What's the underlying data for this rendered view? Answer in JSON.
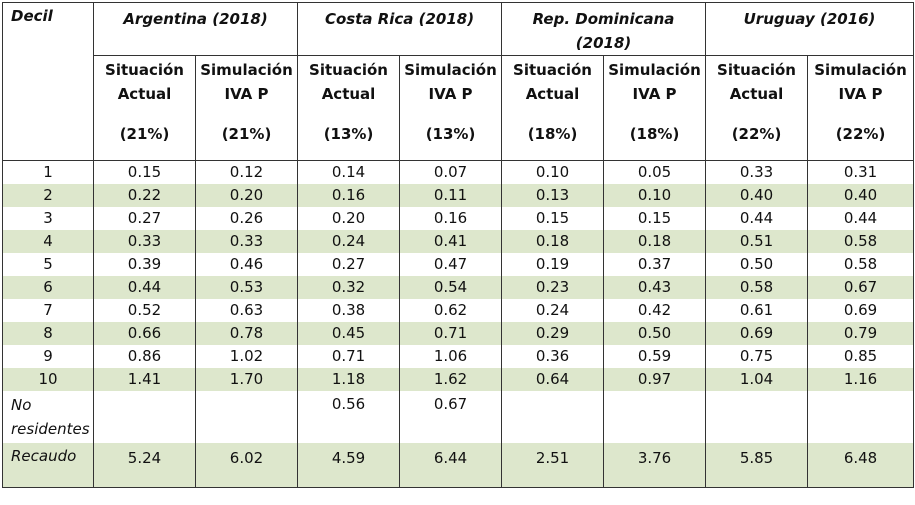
{
  "header": {
    "decil_label": "Decil",
    "countries": [
      "Argentina (2018)",
      "Costa Rica (2018)",
      "Rep. Dominicana (2018)",
      "Uruguay (2016)"
    ],
    "sub": [
      {
        "l1": "Situación",
        "l2": "Actual",
        "rate": "(21%)"
      },
      {
        "l1": "Simulación",
        "l2": "IVA P",
        "rate": "(21%)"
      },
      {
        "l1": "Situación",
        "l2": "Actual",
        "rate": "(13%)"
      },
      {
        "l1": "Simulación",
        "l2": "IVA P",
        "rate": "(13%)"
      },
      {
        "l1": "Situación",
        "l2": "Actual",
        "rate": "(18%)"
      },
      {
        "l1": "Simulación",
        "l2": "IVA P",
        "rate": "(18%)"
      },
      {
        "l1": "Situación",
        "l2": "Actual",
        "rate": "(22%)"
      },
      {
        "l1": "Simulación",
        "l2": "IVA P",
        "rate": "(22%)"
      }
    ]
  },
  "rows": [
    {
      "label": "1",
      "values": [
        "0.15",
        "0.12",
        "0.14",
        "0.07",
        "0.10",
        "0.05",
        "0.33",
        "0.31"
      ]
    },
    {
      "label": "2",
      "values": [
        "0.22",
        "0.20",
        "0.16",
        "0.11",
        "0.13",
        "0.10",
        "0.40",
        "0.40"
      ]
    },
    {
      "label": "3",
      "values": [
        "0.27",
        "0.26",
        "0.20",
        "0.16",
        "0.15",
        "0.15",
        "0.44",
        "0.44"
      ]
    },
    {
      "label": "4",
      "values": [
        "0.33",
        "0.33",
        "0.24",
        "0.41",
        "0.18",
        "0.18",
        "0.51",
        "0.58"
      ]
    },
    {
      "label": "5",
      "values": [
        "0.39",
        "0.46",
        "0.27",
        "0.47",
        "0.19",
        "0.37",
        "0.50",
        "0.58"
      ]
    },
    {
      "label": "6",
      "values": [
        "0.44",
        "0.53",
        "0.32",
        "0.54",
        "0.23",
        "0.43",
        "0.58",
        "0.67"
      ]
    },
    {
      "label": "7",
      "values": [
        "0.52",
        "0.63",
        "0.38",
        "0.62",
        "0.24",
        "0.42",
        "0.61",
        "0.69"
      ]
    },
    {
      "label": "8",
      "values": [
        "0.66",
        "0.78",
        "0.45",
        "0.71",
        "0.29",
        "0.50",
        "0.69",
        "0.79"
      ]
    },
    {
      "label": "9",
      "values": [
        "0.86",
        "1.02",
        "0.71",
        "1.06",
        "0.36",
        "0.59",
        "0.75",
        "0.85"
      ]
    },
    {
      "label": "10",
      "values": [
        "1.41",
        "1.70",
        "1.18",
        "1.62",
        "0.64",
        "0.97",
        "1.04",
        "1.16"
      ]
    }
  ],
  "no_residentes": {
    "label": "No residentes",
    "values": [
      "",
      "",
      "0.56",
      "0.67",
      "",
      "",
      "",
      ""
    ]
  },
  "recaudo": {
    "label": "Recaudo",
    "values": [
      "5.24",
      "6.02",
      "4.59",
      "6.44",
      "2.51",
      "3.76",
      "5.85",
      "6.48"
    ]
  },
  "colors": {
    "stripe": "#dde7cc",
    "border": "#333333"
  }
}
